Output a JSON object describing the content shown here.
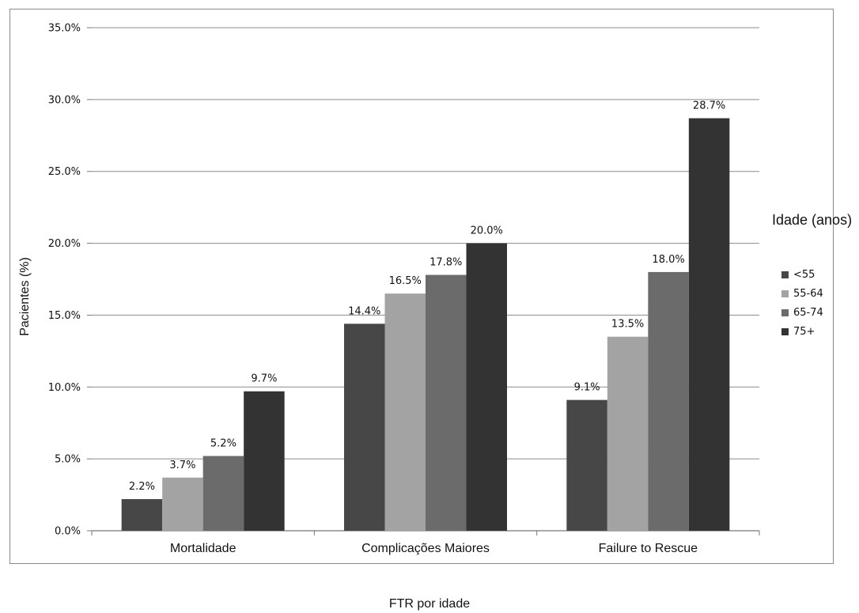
{
  "chart_data": {
    "type": "bar",
    "title": "FTR por idade",
    "xlabel": "",
    "ylabel": "Pacientes (%)",
    "ylim": [
      0,
      35
    ],
    "ytick_values": [
      0,
      5,
      10,
      15,
      20,
      25,
      30,
      35
    ],
    "ytick_labels": [
      "0.0%",
      "5.0%",
      "10.0%",
      "15.0%",
      "20.0%",
      "25.0%",
      "30.0%",
      "35.0%"
    ],
    "grid": true,
    "categories": [
      "Mortalidade",
      "Complicações Maiores",
      "Failure to Rescue"
    ],
    "legend_title": "Idade (anos)",
    "legend_position": "right",
    "series": [
      {
        "name": "<55",
        "color": "#474747",
        "values": [
          2.2,
          14.4,
          9.1
        ],
        "labels": [
          "2.2%",
          "14.4%",
          "9.1%"
        ]
      },
      {
        "name": "55-64",
        "color": "#a3a3a3",
        "values": [
          3.7,
          16.5,
          13.5
        ],
        "labels": [
          "3.7%",
          "16.5%",
          "13.5%"
        ]
      },
      {
        "name": "65-74",
        "color": "#6b6b6b",
        "values": [
          5.2,
          17.8,
          18.0
        ],
        "labels": [
          "5.2%",
          "17.8%",
          "18.0%"
        ]
      },
      {
        "name": "75+",
        "color": "#333333",
        "values": [
          9.7,
          20.0,
          28.7
        ],
        "labels": [
          "9.7%",
          "20.0%",
          "28.7%"
        ]
      }
    ]
  }
}
